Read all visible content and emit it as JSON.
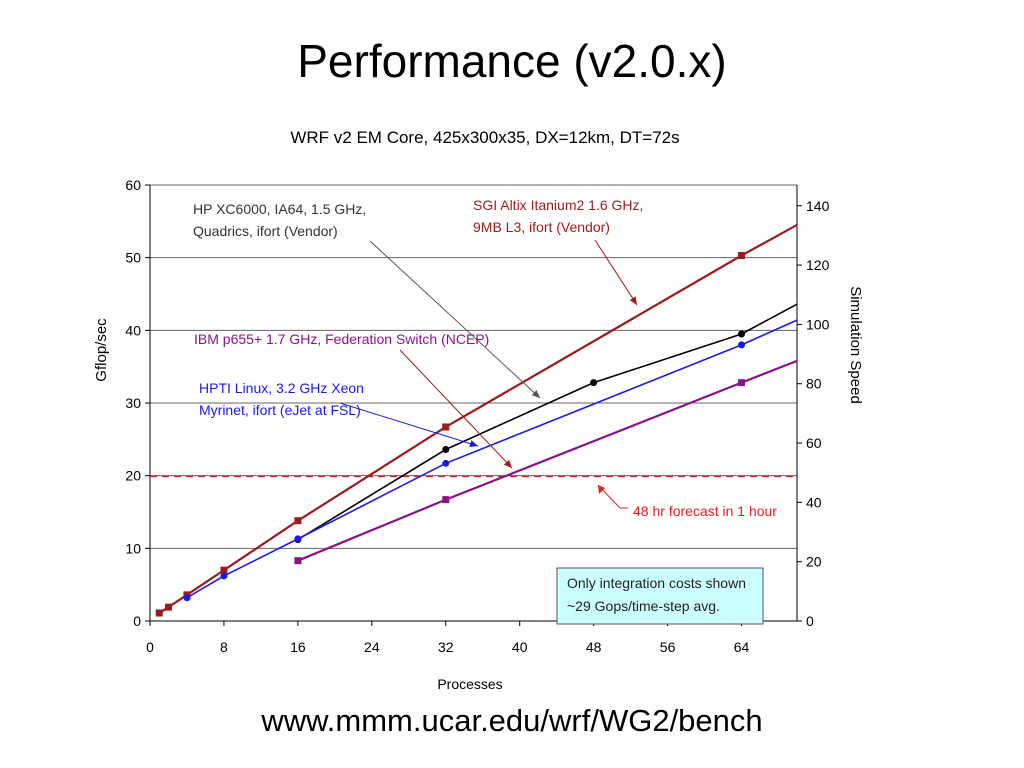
{
  "slide": {
    "title": "Performance (v2.0.x)",
    "url": "www.mmm.ucar.edu/wrf/WG2/bench"
  },
  "chart_data": {
    "type": "line",
    "title": "WRF v2 EM Core, 425x300x35, DX=12km, DT=72s",
    "xlabel": "Processes",
    "ylabel": "Gflop/sec",
    "y2label": "Simulation Speed",
    "xlim": [
      0,
      70
    ],
    "ylim": [
      0,
      60
    ],
    "y2lim": [
      0,
      147
    ],
    "x_ticks": [
      0,
      8,
      16,
      24,
      32,
      40,
      48,
      56,
      64
    ],
    "y_ticks": [
      0,
      10,
      20,
      30,
      40,
      50,
      60
    ],
    "y2_ticks": [
      0,
      20,
      40,
      60,
      80,
      100,
      120,
      140
    ],
    "grid": "horizontal",
    "series": [
      {
        "name": "SGI Altix Itanium2 1.6 GHz, 9MB L3, ifort (Vendor)",
        "color": "#9b1b1b",
        "marker": "square",
        "x": [
          1,
          2,
          4,
          8,
          16,
          32,
          64
        ],
        "y": [
          1.1,
          1.9,
          3.6,
          7.0,
          13.8,
          26.7,
          50.3
        ],
        "trend_end": [
          70,
          54.5
        ]
      },
      {
        "name": "HP XC6000, IA64, 1.5 GHz, Quadrics, ifort (Vendor)",
        "color": "#000000",
        "marker": "circle",
        "x": [
          16,
          32,
          48,
          64
        ],
        "y": [
          11.2,
          23.6,
          32.8,
          39.5
        ],
        "trend_end": [
          70,
          43.6
        ]
      },
      {
        "name": "HPTI Linux, 3.2 GHz Xeon Myrinet, ifort (eJet at FSL)",
        "color": "#1a1aee",
        "marker": "circle",
        "x": [
          4,
          8,
          16,
          32,
          64
        ],
        "y": [
          3.2,
          6.2,
          11.3,
          21.7,
          38.0
        ],
        "trend_end": [
          70,
          41.4
        ]
      },
      {
        "name": "IBM p655+ 1.7 GHz, Federation Switch (NCEP)",
        "color": "#8a138a",
        "marker": "square",
        "x": [
          16,
          32,
          64
        ],
        "y": [
          8.3,
          16.7,
          32.8
        ],
        "trend_end": [
          70,
          35.8
        ]
      }
    ],
    "reference_line": {
      "y": 19.9,
      "color": "#e02020",
      "label": "48 hr forecast in 1 hour"
    },
    "annotations": {
      "hp_line1": "HP XC6000, IA64, 1.5 GHz,",
      "hp_line2": "Quadrics, ifort (Vendor)",
      "sgi_line1": "SGI Altix Itanium2 1.6 GHz,",
      "sgi_line2": "9MB L3, ifort (Vendor)",
      "ibm": "IBM p655+ 1.7 GHz, Federation Switch (NCEP)",
      "hpti_line1": "HPTI Linux, 3.2 GHz Xeon",
      "hpti_line2": "Myrinet, ifort (eJet at FSL)",
      "note_line1": "Only integration costs shown",
      "note_line2": "~29 Gops/time-step avg."
    }
  }
}
